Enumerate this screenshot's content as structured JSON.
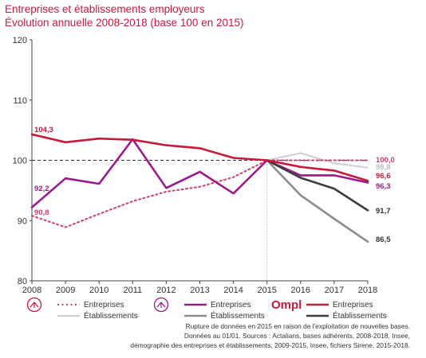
{
  "header": {
    "title": "Entreprises et établissements employeurs",
    "subtitle": "Évolution annuelle 2008-2018 (base 100 en 2015)"
  },
  "chart_data": {
    "type": "line",
    "x": [
      2008,
      2009,
      2010,
      2011,
      2012,
      2013,
      2014,
      2015,
      2016,
      2017,
      2018
    ],
    "ylim": [
      80,
      120
    ],
    "yticks": [
      80,
      90,
      100,
      110,
      120
    ],
    "reference_line": 100,
    "grid": false,
    "series": [
      {
        "group": "",
        "name": "Entreprises",
        "color": "#d23c6e",
        "dash": true,
        "width": 2,
        "values": [
          90.8,
          88.9,
          91.1,
          93.2,
          94.8,
          95.6,
          97.2,
          100.0,
          100.0,
          100.0,
          100.0
        ],
        "start_label": "90,8",
        "end_label": "100,0"
      },
      {
        "group": "",
        "name": "Établissements",
        "color": "#cfcfcf",
        "dash": false,
        "width": 2,
        "values": [
          null,
          null,
          null,
          null,
          null,
          null,
          null,
          100.0,
          101.2,
          99.5,
          98.8
        ],
        "start_label": "",
        "end_label": "98,8"
      },
      {
        "group": "",
        "name": "Entreprises",
        "color": "#9a1a8c",
        "dash": false,
        "width": 2.6,
        "values": [
          92.2,
          97.0,
          96.1,
          103.5,
          95.4,
          98.1,
          94.5,
          100.0,
          97.5,
          97.5,
          96.3
        ],
        "start_label": "92,2",
        "end_label": "96,3"
      },
      {
        "group": "",
        "name": "Établissements",
        "color": "#8c8c8c",
        "dash": false,
        "width": 2.6,
        "values": [
          null,
          null,
          null,
          null,
          null,
          null,
          null,
          100.0,
          94.2,
          90.3,
          86.5
        ],
        "start_label": "",
        "end_label": "86,5"
      },
      {
        "group": "Ompl",
        "name": "Entreprises",
        "color": "#c8193c",
        "dash": false,
        "width": 2.6,
        "values": [
          104.3,
          103.0,
          103.6,
          103.4,
          102.5,
          102.0,
          100.4,
          100.0,
          98.9,
          98.3,
          96.6
        ],
        "start_label": "104,3",
        "end_label": "96,6"
      },
      {
        "group": "Ompl",
        "name": "Établissements",
        "color": "#3c3c3c",
        "dash": false,
        "width": 2.6,
        "values": [
          null,
          null,
          null,
          null,
          null,
          null,
          null,
          100.0,
          97.1,
          95.3,
          91.7
        ],
        "start_label": "",
        "end_label": "91,7"
      }
    ]
  },
  "legend": {
    "groups": [
      {
        "logo_icon": "scale-icon",
        "logo_text": "",
        "entreprises": "Entreprises",
        "etablissements": "Établissements"
      },
      {
        "logo_icon": "balance-icon",
        "logo_text": "",
        "entreprises": "Entreprises",
        "etablissements": "Établissements"
      },
      {
        "logo_icon": "ompl-logo",
        "logo_text": "Ompl",
        "entreprises": "Entreprises",
        "etablissements": "Établissements"
      }
    ]
  },
  "source": {
    "lines": [
      "Rupture de données en 2015 en raison de l'exploitation de nouvelles bases.",
      "Données au 01/01. Sources : Actalians, bases adhérents, 2008-2018, Insee,",
      "démographie des entreprises et établissements, 2009-2015, Insee, fichiers Sirene, 2015-2018."
    ]
  },
  "colors": {
    "accent": "#c8193c",
    "axis": "#444444"
  }
}
